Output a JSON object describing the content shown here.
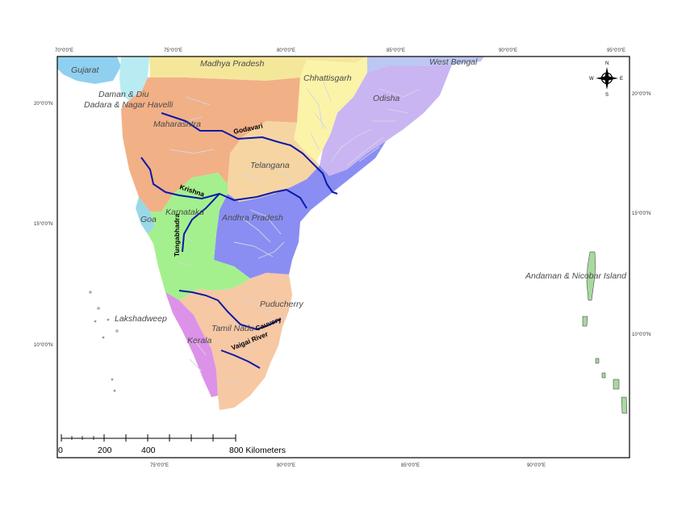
{
  "colors": {
    "gujarat": "#8fd0f0",
    "daman": "#b8ecf2",
    "madhya_pradesh": "#f5e79a",
    "maharashtra": "#f2b087",
    "chhattisgarh": "#fbf3a8",
    "west_bengal": "#bcc7f2",
    "odisha": "#c9b5f2",
    "telangana": "#f6d5a2",
    "andhra_pradesh": "#8a8ef2",
    "karnataka": "#a4f08e",
    "goa": "#9ad8e8",
    "kerala": "#dc92e8",
    "tamil_nadu": "#f6c8a4",
    "andaman": "#a8d8a0",
    "river_main": "#0b1aa8",
    "river_minor": "#d2d6e6"
  },
  "top_labels": [
    "70°0'0\"E",
    "75°0'0\"E",
    "80°0'0\"E",
    "85°0'0\"E",
    "90°0'0\"E",
    "95°0'0\"E"
  ],
  "bottom_labels": [
    "75°0'0\"E",
    "80°0'0\"E",
    "85°0'0\"E",
    "90°0'0\"E"
  ],
  "left_labels": [
    "20°0'0\"N",
    "15°0'0\"N",
    "10°0'0\"N"
  ],
  "right_labels": [
    "20°0'0\"N",
    "15°0'0\"N",
    "10°0'0\"N"
  ],
  "states": {
    "gujarat": "Gujarat",
    "madhya_pradesh": "Madhya Pradesh",
    "west_bengal": "West Bengal",
    "chhattisgarh": "Chhattisgarh",
    "daman": "Daman & Diu",
    "dadara": "Dadara & Nagar Havelli",
    "odisha": "Odisha",
    "maharashtra": "Maharashtra",
    "telangana": "Telangana",
    "goa": "Goa",
    "karnataka": "Karnataka",
    "andhra_pradesh": "Andhra Pradesh",
    "andaman": "Andaman & Nicobar Island",
    "puducherry": "Puducherry",
    "lakshadweep": "Lakshadweep",
    "tamil_nadu": "Tamil Nadu",
    "kerala": "Kerala"
  },
  "rivers": {
    "godavari": "Godavari",
    "krishna": "Krishna",
    "tungabhadra": "Tungabhadra",
    "cauvery": "Cauvery",
    "vaigai": "Vaigai River"
  },
  "scale_bar": {
    "ticks": [
      "0",
      "200",
      "400"
    ],
    "end_label": "800 Kilometers"
  },
  "north_arrow": {
    "n": "N",
    "s": "S",
    "e": "E",
    "w": "W"
  }
}
